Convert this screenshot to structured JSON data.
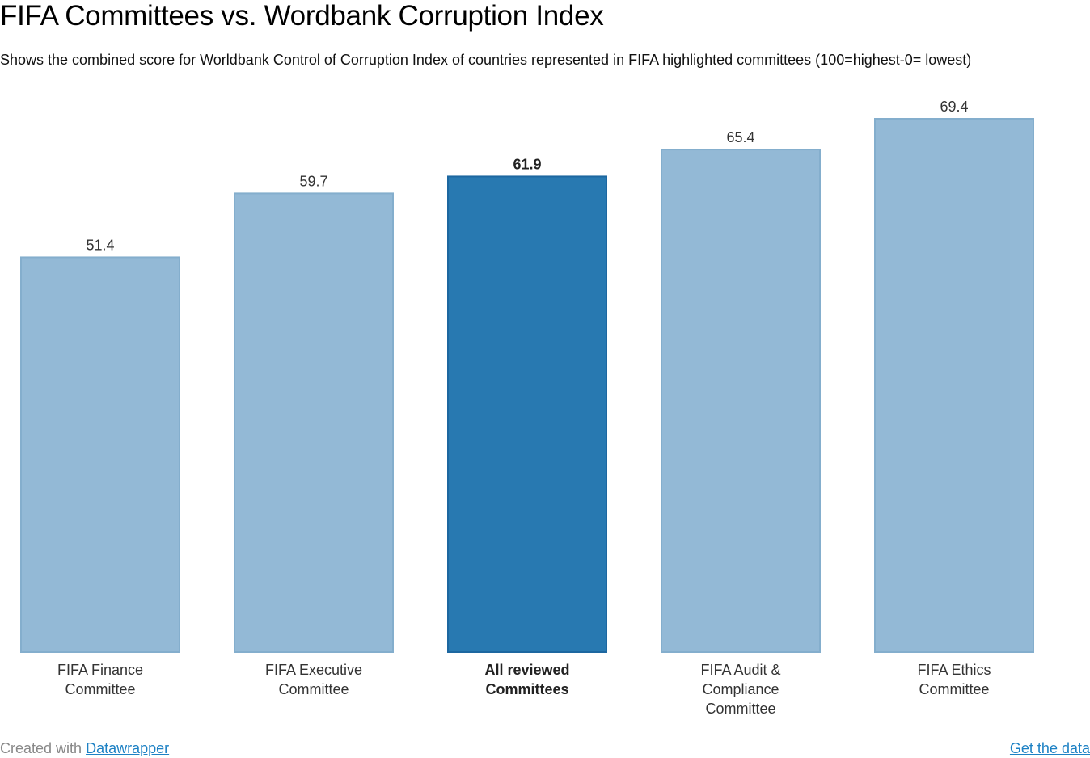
{
  "title": "FIFA Committees vs. Wordbank Corruption Index",
  "subtitle": "Shows the combined score for Worldbank Control of Corruption Index of countries represented in FIFA highlighted committees (100=highest-0= lowest)",
  "footer": {
    "credit_prefix": "Created with",
    "credit_link": "Datawrapper",
    "get_data": "Get the data"
  },
  "colors": {
    "bar": "#93b9d6",
    "bar_border": "#84aecd",
    "highlight": "#2879b1",
    "highlight_border": "#1d67a0",
    "label": "#333333",
    "link": "#1d81c4"
  },
  "chart_data": {
    "type": "bar",
    "title": "FIFA Committees vs. Wordbank Corruption Index",
    "subtitle": "Shows the combined score for Worldbank Control of Corruption Index of countries represented in FIFA highlighted committees (100=highest-0= lowest)",
    "categories": [
      [
        "FIFA Finance",
        "Committee"
      ],
      [
        "FIFA Executive",
        "Committee"
      ],
      [
        "All reviewed",
        "Committees"
      ],
      [
        "FIFA Audit &",
        "Compliance",
        "Committee"
      ],
      [
        "FIFA Ethics",
        "Committee"
      ]
    ],
    "values": [
      51.4,
      59.7,
      61.9,
      65.4,
      69.4
    ],
    "value_labels": [
      "51.4",
      "59.7",
      "61.9",
      "65.4",
      "69.4"
    ],
    "highlighted": [
      false,
      false,
      true,
      false,
      false
    ],
    "ylim": [
      0,
      69.4
    ],
    "grid": false,
    "legend": "none",
    "xlabel": "",
    "ylabel": ""
  }
}
